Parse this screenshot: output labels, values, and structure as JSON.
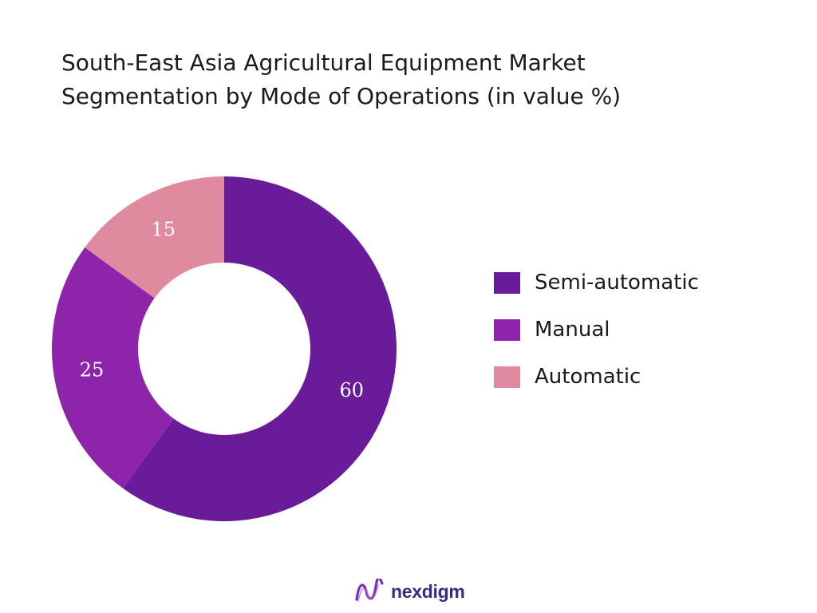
{
  "chart_data": {
    "type": "pie",
    "variant": "donut",
    "title": [
      "South-East Asia Agricultural Equipment Market",
      "Segmentation by Mode of Operations (in value %)"
    ],
    "categories": [
      "Semi-automatic",
      "Manual",
      "Automatic"
    ],
    "values": [
      60,
      25,
      15
    ],
    "colors": [
      "#6a1b9a",
      "#8e24aa",
      "#df8a9e"
    ],
    "legend_position": "right",
    "data_labels": true
  },
  "brand": {
    "name": "nexdigm",
    "icon": "nexdigm-logo-icon"
  }
}
